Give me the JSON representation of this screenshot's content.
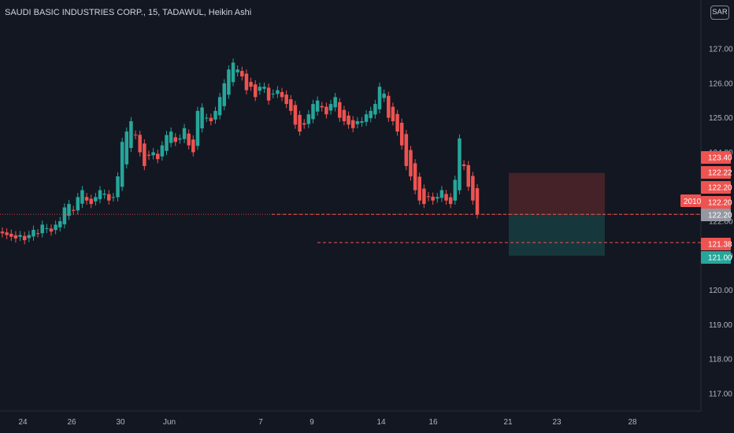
{
  "header": {
    "title": "SAUDI BASIC INDUSTRIES CORP., 15, TADAWUL, Heikin Ashi",
    "currency": "SAR"
  },
  "colors": {
    "background": "#131722",
    "up": "#26a69a",
    "down": "#ef5350",
    "stop_zone": "#4a2429",
    "target_zone": "#16393d",
    "current_price_tag": "#9598a1"
  },
  "chart_data": {
    "type": "candlestick",
    "style": "Heikin Ashi",
    "interval": "15",
    "y_axis": {
      "ticks": [
        "127.00",
        "126.00",
        "125.00",
        "124.00",
        "122.00",
        "121.00",
        "120.00",
        "119.00",
        "118.00",
        "117.00"
      ],
      "range": [
        116.6,
        127.5
      ]
    },
    "x_axis": {
      "ticks": [
        "24",
        "26",
        "30",
        "Jun",
        "7",
        "9",
        "14",
        "16",
        "21",
        "23",
        "28"
      ]
    },
    "price_tags": [
      {
        "label": "123.40",
        "color": "#ef5350",
        "value": 123.4
      },
      {
        "label": "122.22",
        "color": "#ef5350",
        "value": 122.22
      },
      {
        "label": "122.20",
        "color": "#ef5350",
        "value": 122.2
      },
      {
        "label": "122.20",
        "color": "#ef5350",
        "value": 122.2
      },
      {
        "label": "122.20",
        "color": "#9598a1",
        "value": 122.2,
        "note": "current"
      },
      {
        "label": "121.38",
        "color": "#ef5350",
        "value": 121.38
      },
      {
        "label": "121.00",
        "color": "#26a69a",
        "value": 121.0
      }
    ],
    "countdown_label": "2010",
    "position": {
      "entry": 122.2,
      "stop": 123.4,
      "target": 121.0,
      "secondary_line": 121.38
    },
    "series": [
      {
        "name": "",
        "closes": [
          121.65,
          121.6,
          121.55,
          121.5,
          121.6,
          121.45,
          121.6,
          121.75,
          121.65,
          121.9,
          121.8,
          121.7,
          121.9,
          122.0,
          122.4,
          122.5,
          122.3,
          122.7,
          122.9,
          122.6,
          122.5,
          122.7,
          122.9,
          122.8,
          122.6,
          122.7,
          123.3,
          124.3,
          124.6,
          124.9,
          124.5,
          124.0,
          123.6,
          123.9,
          124.0,
          123.8,
          124.2,
          124.5,
          124.6,
          124.3,
          124.4,
          124.7,
          124.2,
          124.0,
          125.2,
          125.3,
          125.0,
          124.9,
          125.2,
          125.6,
          126.0,
          126.4,
          126.6,
          126.4,
          126.2,
          125.8,
          125.9,
          125.6,
          125.9,
          125.9,
          125.5,
          125.7,
          125.8,
          125.6,
          125.4,
          125.2,
          124.8,
          124.6,
          124.8,
          125.1,
          125.4,
          125.5,
          125.3,
          125.1,
          125.4,
          125.6,
          125.0,
          124.9,
          124.8,
          124.7,
          124.9,
          124.9,
          125.1,
          125.2,
          125.4,
          125.9,
          125.7,
          125.0,
          124.9,
          124.6,
          124.2,
          123.6,
          123.3,
          122.9,
          122.6,
          122.5,
          122.7,
          122.6,
          122.7,
          122.9,
          122.6,
          122.5,
          123.2,
          124.4,
          123.6,
          123.0,
          122.6,
          122.2
        ]
      }
    ]
  }
}
